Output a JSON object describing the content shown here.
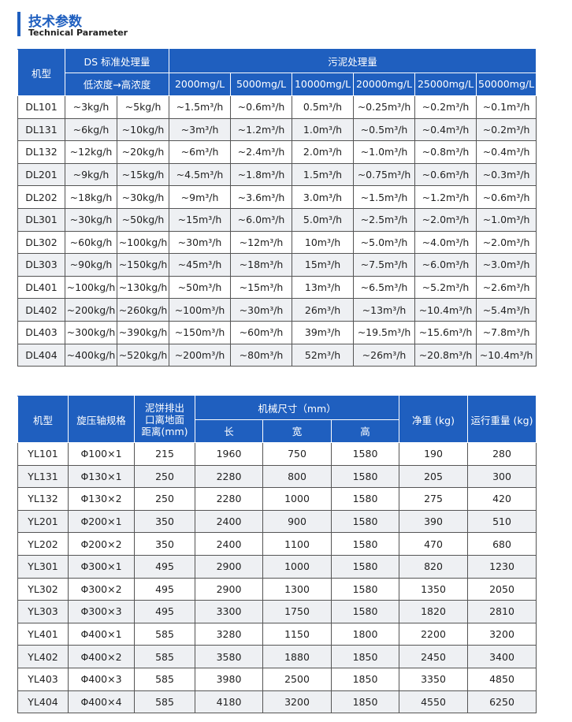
{
  "header": {
    "title": "技术参数",
    "subtitle": "Technical Parameter"
  },
  "table1": {
    "model_header": "机型",
    "ds_header": "DS 标准处理量",
    "ds_subheader": "低浓度→高浓度",
    "sludge_header": "污泥处理量",
    "sludge_columns": [
      "2000mg/L",
      "5000mg/L",
      "10000mg/L",
      "20000mg/L",
      "25000mg/L",
      "50000mg/L"
    ],
    "rows": [
      [
        "DL101",
        "~3kg/h",
        "~5kg/h",
        "~1.5m³/h",
        "~0.6m³/h",
        "0.5m³/h",
        "~0.25m³/h",
        "~0.2m³/h",
        "~0.1m³/h"
      ],
      [
        "DL131",
        "~6kg/h",
        "~10kg/h",
        "~3m³/h",
        "~1.2m³/h",
        "1.0m³/h",
        "~0.5m³/h",
        "~0.4m³/h",
        "~0.2m³/h"
      ],
      [
        "DL132",
        "~12kg/h",
        "~20kg/h",
        "~6m³/h",
        "~2.4m³/h",
        "2.0m³/h",
        "~1.0m³/h",
        "~0.8m³/h",
        "~0.4m³/h"
      ],
      [
        "DL201",
        "~9kg/h",
        "~15kg/h",
        "~4.5m³/h",
        "~1.8m³/h",
        "1.5m³/h",
        "~0.75m³/h",
        "~0.6m³/h",
        "~0.3m³/h"
      ],
      [
        "DL202",
        "~18kg/h",
        "~30kg/h",
        "~9m³/h",
        "~3.6m³/h",
        "3.0m³/h",
        "~1.5m³/h",
        "~1.2m³/h",
        "~0.6m³/h"
      ],
      [
        "DL301",
        "~30kg/h",
        "~50kg/h",
        "~15m³/h",
        "~6.0m³/h",
        "5.0m³/h",
        "~2.5m³/h",
        "~2.0m³/h",
        "~1.0m³/h"
      ],
      [
        "DL302",
        "~60kg/h",
        "~100kg/h",
        "~30m³/h",
        "~12m³/h",
        "10m³/h",
        "~5.0m³/h",
        "~4.0m³/h",
        "~2.0m³/h"
      ],
      [
        "DL303",
        "~90kg/h",
        "~150kg/h",
        "~45m³/h",
        "~18m³/h",
        "15m³/h",
        "~7.5m³/h",
        "~6.0m³/h",
        "~3.0m³/h"
      ],
      [
        "DL401",
        "~100kg/h",
        "~130kg/h",
        "~50m³/h",
        "~15m³/h",
        "13m³/h",
        "~6.5m³/h",
        "~5.2m³/h",
        "~2.6m³/h"
      ],
      [
        "DL402",
        "~200kg/h",
        "~260kg/h",
        "~100m³/h",
        "~30m³/h",
        "26m³/h",
        "~13m³/h",
        "~10.4m³/h",
        "~5.4m³/h"
      ],
      [
        "DL403",
        "~300kg/h",
        "~390kg/h",
        "~150m³/h",
        "~60m³/h",
        "39m³/h",
        "~19.5m³/h",
        "~15.6m³/h",
        "~7.8m³/h"
      ],
      [
        "DL404",
        "~400kg/h",
        "~520kg/h",
        "~200m³/h",
        "~80m³/h",
        "52m³/h",
        "~26m³/h",
        "~20.8m³/h",
        "~10.4m³/h"
      ]
    ]
  },
  "table2": {
    "model_header": "机型",
    "spindle_header": "旋压轴规格",
    "outlet_header": "泥饼排出口离地面距离(mm)",
    "size_header": "机械尺寸（mm）",
    "size_columns": [
      "长",
      "宽",
      "高"
    ],
    "net_weight_header": "净重 (kg)",
    "operating_weight_header": "运行重量 (kg)",
    "rows": [
      [
        "YL101",
        "Φ100×1",
        215,
        1960,
        750,
        1580,
        190,
        280
      ],
      [
        "YL131",
        "Φ130×1",
        250,
        2280,
        800,
        1580,
        205,
        300
      ],
      [
        "YL132",
        "Φ130×2",
        250,
        2280,
        1000,
        1580,
        275,
        420
      ],
      [
        "YL201",
        "Φ200×1",
        350,
        2400,
        900,
        1580,
        390,
        510
      ],
      [
        "YL202",
        "Φ200×2",
        350,
        2400,
        1100,
        1580,
        470,
        680
      ],
      [
        "YL301",
        "Φ300×1",
        495,
        2900,
        1000,
        1580,
        820,
        1230
      ],
      [
        "YL302",
        "Φ300×2",
        495,
        2900,
        1300,
        1580,
        1350,
        2050
      ],
      [
        "YL303",
        "Φ300×3",
        495,
        3300,
        1750,
        1580,
        1820,
        2810
      ],
      [
        "YL401",
        "Φ400×1",
        585,
        3280,
        1150,
        1800,
        2200,
        3200
      ],
      [
        "YL402",
        "Φ400×2",
        585,
        3580,
        1880,
        1850,
        2450,
        3400
      ],
      [
        "YL403",
        "Φ400×3",
        585,
        3980,
        2500,
        1850,
        3350,
        4850
      ],
      [
        "YL404",
        "Φ400×4",
        585,
        4180,
        3200,
        1850,
        4550,
        6250
      ]
    ]
  }
}
